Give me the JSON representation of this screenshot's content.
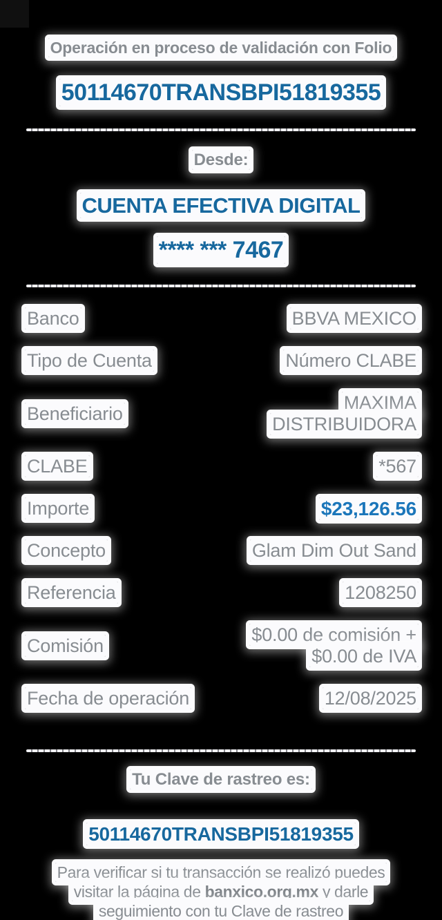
{
  "colors": {
    "background": "#000000",
    "halo_white": "#fbfbfd",
    "text_gray": "#878c91",
    "accent_blue": "#17689e",
    "amount_blue": "#1b76ba"
  },
  "header": {
    "status_line": "Operación en proceso de validación con Folio",
    "folio": "50114670TRANSBPI51819355"
  },
  "source": {
    "label": "Desde:",
    "account_name": "CUENTA EFECTIVA DIGITAL",
    "account_mask": "**** *** 7467"
  },
  "details": {
    "rows": [
      {
        "label": "Banco",
        "value": "BBVA MEXICO"
      },
      {
        "label": "Tipo de Cuenta",
        "value": "Número CLABE"
      },
      {
        "label": "Beneficiario",
        "value": "MAXIMA DISTRIBUIDORA"
      },
      {
        "label": "CLABE",
        "value": "*567"
      },
      {
        "label": "Importe",
        "value": "$23,126.56"
      },
      {
        "label": "Concepto",
        "value": "Glam Dim Out Sand"
      },
      {
        "label": "Referencia",
        "value": "1208250"
      },
      {
        "label": "Comisión",
        "value": "$0.00 de comisión + $0.00 de IVA"
      },
      {
        "label": "Fecha de operación",
        "value": "12/08/2025"
      }
    ]
  },
  "footer": {
    "tracking_label": "Tu Clave de rastreo es:",
    "tracking_key": "50114670TRANSBPI51819355",
    "note_line1": "Para verificar si tu transacción se realizó puedes",
    "note_line2_prefix": "visitar la página de ",
    "note_link": "banxico.org.mx",
    "note_line2_suffix": " y darle",
    "note_line3": "seguimiento con tu Clave de rastreo"
  }
}
